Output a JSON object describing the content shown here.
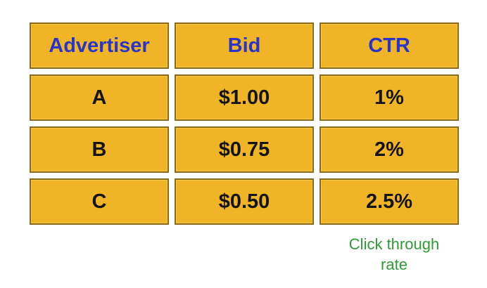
{
  "table": {
    "headers": [
      "Advertiser",
      "Bid",
      "CTR"
    ],
    "rows": [
      [
        "A",
        "$1.00",
        "1%"
      ],
      [
        "B",
        "$0.75",
        "2%"
      ],
      [
        "C",
        "$0.50",
        "2.5%"
      ]
    ]
  },
  "annotation": {
    "line1": "Click through",
    "line2": "rate"
  },
  "colors": {
    "cell_fill": "#f0b527",
    "header_text": "#2a35c8",
    "body_text": "#141414",
    "annotation_text": "#2e9b34"
  }
}
